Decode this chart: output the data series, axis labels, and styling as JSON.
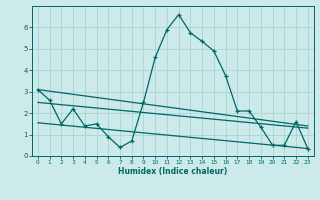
{
  "title": "",
  "xlabel": "Humidex (Indice chaleur)",
  "xlim": [
    -0.5,
    23.5
  ],
  "ylim": [
    0,
    7
  ],
  "yticks": [
    0,
    1,
    2,
    3,
    4,
    5,
    6
  ],
  "xticks": [
    0,
    1,
    2,
    3,
    4,
    5,
    6,
    7,
    8,
    9,
    10,
    11,
    12,
    13,
    14,
    15,
    16,
    17,
    18,
    19,
    20,
    21,
    22,
    23
  ],
  "bg_color": "#cceaea",
  "grid_color": "#aad4d4",
  "line_color": "#006666",
  "line1_x": [
    0,
    1,
    2,
    3,
    4,
    5,
    6,
    7,
    8,
    9,
    10,
    11,
    12,
    13,
    14,
    15,
    16,
    17,
    18,
    19,
    20,
    21,
    22,
    23
  ],
  "line1_y": [
    3.1,
    2.6,
    1.5,
    2.2,
    1.4,
    1.5,
    0.9,
    0.4,
    0.7,
    2.5,
    4.6,
    5.9,
    6.6,
    5.75,
    5.35,
    4.9,
    3.75,
    2.1,
    2.1,
    1.35,
    0.5,
    0.5,
    1.6,
    0.35
  ],
  "trend1_x": [
    0,
    23
  ],
  "trend1_y": [
    2.5,
    1.3
  ],
  "trend2_x": [
    0,
    23
  ],
  "trend2_y": [
    1.55,
    0.35
  ],
  "trend3_x": [
    0,
    23
  ],
  "trend3_y": [
    3.1,
    1.4
  ]
}
